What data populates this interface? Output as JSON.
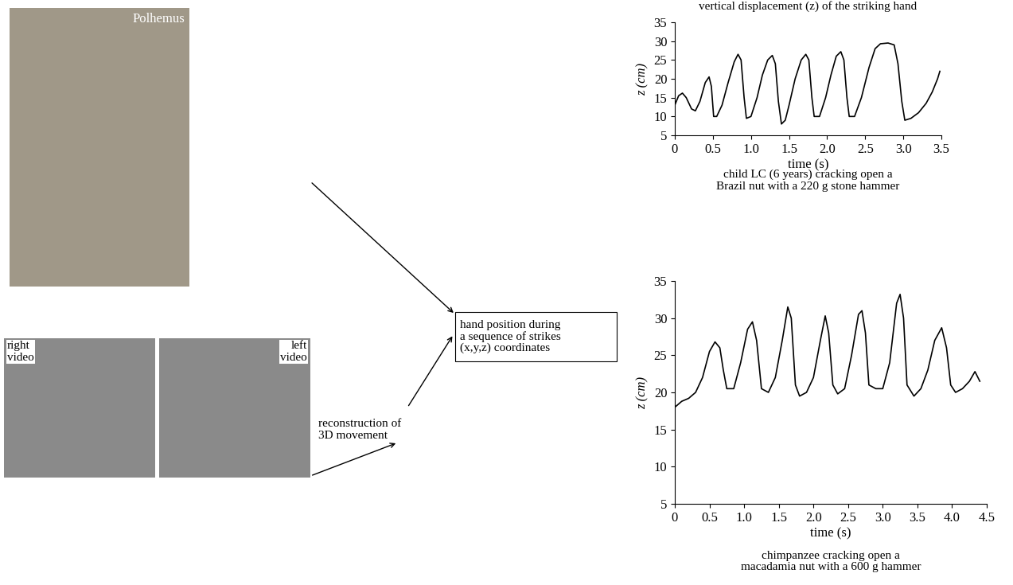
{
  "diagram": {
    "photos": [
      {
        "label": "Polhemus"
      },
      {
        "label": "right\nvideo"
      },
      {
        "label": "left\nvideo"
      }
    ],
    "step": "reconstruction of\n3D movement",
    "box": "hand position during\na sequence of strikes\n(x,y,z) coordinates"
  },
  "chart_data": [
    {
      "type": "line",
      "title": "vertical displacement (z) of the striking hand",
      "caption": "child LC (6 years) cracking open a\nBrazil nut with a 220 g stone hammer",
      "x_label": "time (s)",
      "y_label": "z (cm)",
      "color": "#000000",
      "x": [
        0,
        0.05,
        0.1,
        0.15,
        0.22,
        0.27,
        0.33,
        0.4,
        0.45,
        0.48,
        0.51,
        0.55,
        0.62,
        0.7,
        0.78,
        0.83,
        0.87,
        0.91,
        0.94,
        1.0,
        1.08,
        1.15,
        1.22,
        1.28,
        1.32,
        1.36,
        1.4,
        1.45,
        1.5,
        1.58,
        1.66,
        1.72,
        1.76,
        1.8,
        1.83,
        1.9,
        1.98,
        2.05,
        2.12,
        2.18,
        2.22,
        2.26,
        2.29,
        2.36,
        2.45,
        2.55,
        2.63,
        2.7,
        2.8,
        2.88,
        2.93,
        2.98,
        3.02,
        3.1,
        3.2,
        3.3,
        3.38,
        3.45,
        3.48
      ],
      "values": [
        13,
        15.5,
        16.2,
        15,
        12,
        11.5,
        14,
        19,
        20.5,
        18,
        10,
        10,
        13,
        19,
        24.5,
        26.5,
        25,
        15,
        9.5,
        10,
        15,
        21,
        25,
        26.2,
        24,
        14,
        8,
        9,
        13,
        20,
        25,
        26.5,
        25,
        15,
        10,
        10,
        15,
        21,
        26,
        27.2,
        25,
        15,
        10,
        10,
        15,
        23,
        28,
        29.3,
        29.5,
        29,
        24,
        14,
        9,
        9.5,
        11,
        13.5,
        16.5,
        20,
        22
      ],
      "xlim": [
        0,
        3.5
      ],
      "xticks": [
        0,
        0.5,
        1.0,
        1.5,
        2.0,
        2.5,
        3.0,
        3.5
      ],
      "ylim": [
        5,
        35
      ],
      "yticks": [
        5,
        10,
        15,
        20,
        25,
        30,
        35
      ]
    },
    {
      "type": "line",
      "caption": "chimpanzee cracking open a\nmacadamia nut with a 600 g hammer",
      "x_label": "time (s)",
      "y_label": "z (cm)",
      "color": "#000000",
      "x": [
        0,
        0.1,
        0.2,
        0.3,
        0.4,
        0.5,
        0.58,
        0.65,
        0.7,
        0.75,
        0.85,
        0.95,
        1.05,
        1.12,
        1.18,
        1.25,
        1.35,
        1.45,
        1.55,
        1.63,
        1.68,
        1.74,
        1.8,
        1.9,
        2.0,
        2.1,
        2.17,
        2.22,
        2.28,
        2.35,
        2.45,
        2.55,
        2.65,
        2.7,
        2.75,
        2.8,
        2.9,
        3.0,
        3.1,
        3.2,
        3.25,
        3.3,
        3.35,
        3.45,
        3.55,
        3.65,
        3.75,
        3.85,
        3.92,
        3.98,
        4.05,
        4.15,
        4.25,
        4.33,
        4.4
      ],
      "values": [
        18,
        18.8,
        19.2,
        20,
        22,
        25.5,
        26.8,
        26,
        23,
        20.5,
        20.5,
        24,
        28.5,
        29.5,
        27,
        20.5,
        20,
        22,
        27,
        31.5,
        30,
        21,
        19.5,
        20,
        22,
        27,
        30.3,
        28,
        21,
        19.8,
        20.5,
        25,
        30.5,
        31,
        28,
        21,
        20.5,
        20.5,
        24,
        32,
        33.2,
        30,
        21,
        19.5,
        20.5,
        23,
        27,
        28.7,
        26,
        21,
        20,
        20.5,
        21.5,
        22.8,
        21.5
      ],
      "xlim": [
        0,
        4.5
      ],
      "xticks": [
        0,
        0.5,
        1.0,
        1.5,
        2.0,
        2.5,
        3.0,
        3.5,
        4.0,
        4.5
      ],
      "ylim": [
        5,
        35
      ],
      "yticks": [
        5,
        10,
        15,
        20,
        25,
        30,
        35
      ]
    }
  ]
}
